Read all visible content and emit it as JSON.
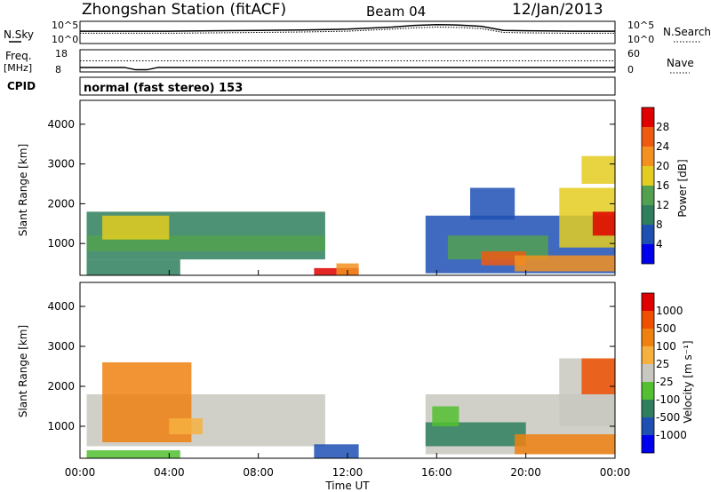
{
  "header": {
    "station": "Zhongshan Station (fitACF)",
    "beam": "Beam 04",
    "date": "12/Jan/2013"
  },
  "chart_data": [
    {
      "type": "line",
      "name": "noise-panel",
      "left_label": "N.Sky",
      "right_label": "N.Search",
      "left_ticks": [
        "10^5",
        "10^0"
      ],
      "right_ticks": [
        "10^5",
        "10^0"
      ],
      "x_range_hours": [
        0,
        24
      ],
      "series": [
        {
          "name": "N.Sky",
          "x": [
            0,
            2,
            4,
            6,
            8,
            10,
            12,
            14,
            15,
            16,
            17,
            18,
            19,
            20,
            22,
            24
          ],
          "y": [
            3.0,
            3.0,
            3.0,
            3.1,
            3.2,
            3.3,
            3.5,
            4.0,
            4.4,
            4.6,
            4.5,
            4.2,
            3.2,
            3.1,
            3.0,
            3.0
          ]
        },
        {
          "name": "N.Search",
          "x": [
            0,
            2,
            4,
            6,
            8,
            10,
            12,
            14,
            15,
            16,
            17,
            18,
            19,
            20,
            22,
            24
          ],
          "y": [
            2.5,
            2.5,
            2.5,
            2.6,
            2.7,
            2.8,
            3.0,
            3.5,
            3.8,
            4.0,
            3.9,
            3.6,
            2.7,
            2.6,
            2.5,
            2.5
          ]
        }
      ]
    },
    {
      "type": "line",
      "name": "frequency-panel",
      "left_label": "Freq.",
      "left_unit": "[MHz]",
      "right_label": "Nave",
      "left_ticks": [
        "18",
        "8"
      ],
      "right_ticks": [
        "60",
        "0"
      ],
      "series": [
        {
          "name": "Freq",
          "x": [
            0,
            2,
            2.5,
            3,
            3.5,
            24
          ],
          "y": [
            10,
            10,
            9,
            9,
            10,
            10
          ]
        },
        {
          "name": "Nave",
          "x": [
            0,
            24
          ],
          "y": [
            30,
            30
          ]
        }
      ]
    },
    {
      "type": "table",
      "name": "cpid-panel",
      "label": "CPID",
      "mode": "normal (fast stereo) 153"
    },
    {
      "type": "heatmap",
      "name": "power-panel",
      "ylabel": "Slant Range [km]",
      "yticks": [
        1000,
        2000,
        3000,
        4000
      ],
      "ylim": [
        200,
        4600
      ],
      "colorbar_label": "Power [dB]",
      "colorbar_ticks": [
        "4",
        "8",
        "12",
        "16",
        "20",
        "24",
        "28"
      ],
      "colors": [
        "#0000ee",
        "#1e50b4",
        "#2f7f5e",
        "#52a050",
        "#e4cc20",
        "#f39020",
        "#ee5a10",
        "#e00000"
      ],
      "patches": [
        {
          "x0": 0.3,
          "x1": 11.0,
          "y0": 600,
          "y1": 1800,
          "level": 2
        },
        {
          "x0": 0.3,
          "x1": 11.0,
          "y0": 800,
          "y1": 1200,
          "level": 3
        },
        {
          "x0": 1.0,
          "x1": 4.0,
          "y0": 1100,
          "y1": 1700,
          "level": 4
        },
        {
          "x0": 0.3,
          "x1": 4.5,
          "y0": 200,
          "y1": 600,
          "level": 2
        },
        {
          "x0": 10.5,
          "x1": 12.5,
          "y0": 200,
          "y1": 380,
          "level": 7
        },
        {
          "x0": 11.5,
          "x1": 12.5,
          "y0": 200,
          "y1": 500,
          "level": 5
        },
        {
          "x0": 15.5,
          "x1": 24.0,
          "y0": 250,
          "y1": 1700,
          "level": 1
        },
        {
          "x0": 16.5,
          "x1": 21.0,
          "y0": 600,
          "y1": 1200,
          "level": 3
        },
        {
          "x0": 18.0,
          "x1": 20.0,
          "y0": 450,
          "y1": 800,
          "level": 6
        },
        {
          "x0": 19.5,
          "x1": 24.0,
          "y0": 300,
          "y1": 700,
          "level": 5
        },
        {
          "x0": 21.5,
          "x1": 24.0,
          "y0": 900,
          "y1": 2400,
          "level": 4
        },
        {
          "x0": 23.0,
          "x1": 24.0,
          "y0": 1200,
          "y1": 1800,
          "level": 7
        },
        {
          "x0": 17.5,
          "x1": 19.5,
          "y0": 1600,
          "y1": 2400,
          "level": 1
        },
        {
          "x0": 22.5,
          "x1": 24.0,
          "y0": 2500,
          "y1": 3200,
          "level": 4
        }
      ]
    },
    {
      "type": "heatmap",
      "name": "velocity-panel",
      "ylabel": "Slant Range [km]",
      "yticks": [
        1000,
        2000,
        3000,
        4000
      ],
      "ylim": [
        200,
        4600
      ],
      "colorbar_label": "Velocity [m s⁻¹]",
      "colorbar_ticks": [
        "1000",
        "500",
        "100",
        "25",
        "-25",
        "-100",
        "-500",
        "-1000"
      ],
      "colors": [
        "#0000ee",
        "#1e50b4",
        "#2f7f5e",
        "#52c030",
        "#c8c8c0",
        "#f6b040",
        "#f08010",
        "#ee5000",
        "#e00000"
      ],
      "patches": [
        {
          "x0": 0.3,
          "x1": 11.0,
          "y0": 500,
          "y1": 1800,
          "level": 4
        },
        {
          "x0": 1.0,
          "x1": 5.0,
          "y0": 600,
          "y1": 2600,
          "level": 6
        },
        {
          "x0": 4.0,
          "x1": 5.5,
          "y0": 800,
          "y1": 1200,
          "level": 5
        },
        {
          "x0": 0.3,
          "x1": 4.5,
          "y0": 200,
          "y1": 400,
          "level": 3
        },
        {
          "x0": 10.5,
          "x1": 12.5,
          "y0": 200,
          "y1": 550,
          "level": 1
        },
        {
          "x0": 15.5,
          "x1": 24.0,
          "y0": 300,
          "y1": 1800,
          "level": 4
        },
        {
          "x0": 15.5,
          "x1": 20.0,
          "y0": 500,
          "y1": 1100,
          "level": 2
        },
        {
          "x0": 19.5,
          "x1": 24.0,
          "y0": 300,
          "y1": 800,
          "level": 6
        },
        {
          "x0": 21.5,
          "x1": 24.0,
          "y0": 1000,
          "y1": 2700,
          "level": 4
        },
        {
          "x0": 22.5,
          "x1": 24.0,
          "y0": 1800,
          "y1": 2700,
          "level": 7
        },
        {
          "x0": 15.8,
          "x1": 17.0,
          "y0": 1000,
          "y1": 1500,
          "level": 3
        }
      ]
    }
  ],
  "time_axis": {
    "label": "Time UT",
    "ticks": [
      "00:00",
      "04:00",
      "08:00",
      "12:00",
      "16:00",
      "20:00",
      "00:00"
    ],
    "range_hours": [
      0,
      24
    ]
  }
}
